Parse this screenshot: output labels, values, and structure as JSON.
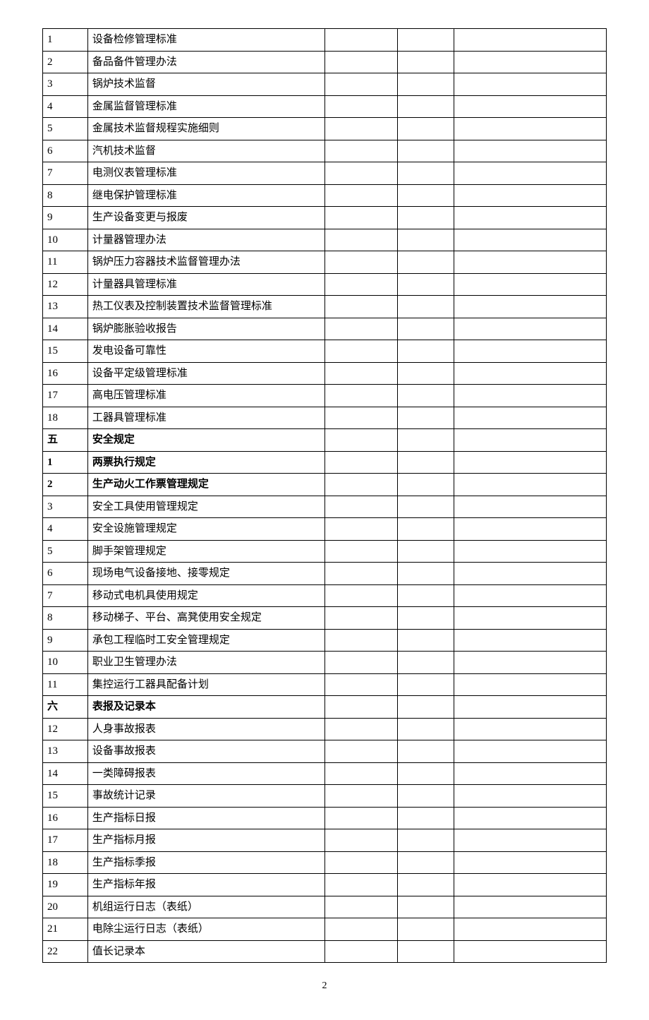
{
  "columns": {
    "widths": [
      "8%",
      "42%",
      "13%",
      "10%",
      "27%"
    ]
  },
  "rows": [
    {
      "num": "1",
      "title": "设备检修管理标准",
      "bold": false
    },
    {
      "num": "2",
      "title": "备品备件管理办法",
      "bold": false
    },
    {
      "num": "3",
      "title": "锅炉技术监督",
      "bold": false
    },
    {
      "num": "4",
      "title": "金属监督管理标准",
      "bold": false
    },
    {
      "num": "5",
      "title": "金属技术监督规程实施细则",
      "bold": false
    },
    {
      "num": "6",
      "title": "汽机技术监督",
      "bold": false
    },
    {
      "num": "7",
      "title": "电测仪表管理标准",
      "bold": false
    },
    {
      "num": "8",
      "title": "继电保护管理标准",
      "bold": false
    },
    {
      "num": "9",
      "title": "生产设备变更与报废",
      "bold": false
    },
    {
      "num": "10",
      "title": "计量器管理办法",
      "bold": false
    },
    {
      "num": "11",
      "title": "锅炉压力容器技术监督管理办法",
      "bold": false
    },
    {
      "num": "12",
      "title": "计量器具管理标准",
      "bold": false
    },
    {
      "num": "13",
      "title": "热工仪表及控制装置技术监督管理标准",
      "bold": false
    },
    {
      "num": "14",
      "title": "锅炉膨胀验收报告",
      "bold": false
    },
    {
      "num": "15",
      "title": "发电设备可靠性",
      "bold": false
    },
    {
      "num": "16",
      "title": "设备平定级管理标准",
      "bold": false
    },
    {
      "num": "17",
      "title": "高电压管理标准",
      "bold": false
    },
    {
      "num": "18",
      "title": "工器具管理标准",
      "bold": false
    },
    {
      "num": "五",
      "title": "安全规定",
      "bold": true
    },
    {
      "num": "1",
      "title": "两票执行规定",
      "bold": true
    },
    {
      "num": "2",
      "title": "生产动火工作票管理规定",
      "bold": true
    },
    {
      "num": "3",
      "title": "安全工具使用管理规定",
      "bold": false
    },
    {
      "num": "4",
      "title": "安全设施管理规定",
      "bold": false
    },
    {
      "num": "5",
      "title": "脚手架管理规定",
      "bold": false
    },
    {
      "num": "6",
      "title": "现场电气设备接地、接零规定",
      "bold": false
    },
    {
      "num": "7",
      "title": "移动式电机具使用规定",
      "bold": false
    },
    {
      "num": "8",
      "title": "移动梯子、平台、高凳使用安全规定",
      "bold": false
    },
    {
      "num": "9",
      "title": "承包工程临时工安全管理规定",
      "bold": false
    },
    {
      "num": "10",
      "title": "职业卫生管理办法",
      "bold": false
    },
    {
      "num": "11",
      "title": "集控运行工器具配备计划",
      "bold": false
    },
    {
      "num": "六",
      "title": "表报及记录本",
      "bold": true
    },
    {
      "num": "12",
      "title": "人身事故报表",
      "bold": false
    },
    {
      "num": "13",
      "title": "设备事故报表",
      "bold": false
    },
    {
      "num": "14",
      "title": "一类障碍报表",
      "bold": false
    },
    {
      "num": "15",
      "title": "事故统计记录",
      "bold": false
    },
    {
      "num": "16",
      "title": "生产指标日报",
      "bold": false
    },
    {
      "num": "17",
      "title": "生产指标月报",
      "bold": false
    },
    {
      "num": "18",
      "title": "生产指标季报",
      "bold": false
    },
    {
      "num": "19",
      "title": "生产指标年报",
      "bold": false
    },
    {
      "num": "20",
      "title": "机组运行日志（表纸）",
      "bold": false
    },
    {
      "num": "21",
      "title": "电除尘运行日志（表纸）",
      "bold": false
    },
    {
      "num": "22",
      "title": "值长记录本",
      "bold": false
    }
  ],
  "page_number": "2",
  "styling": {
    "font_family": "SimSun",
    "font_size": 15,
    "border_color": "#000000",
    "background_color": "#ffffff",
    "text_color": "#000000"
  }
}
